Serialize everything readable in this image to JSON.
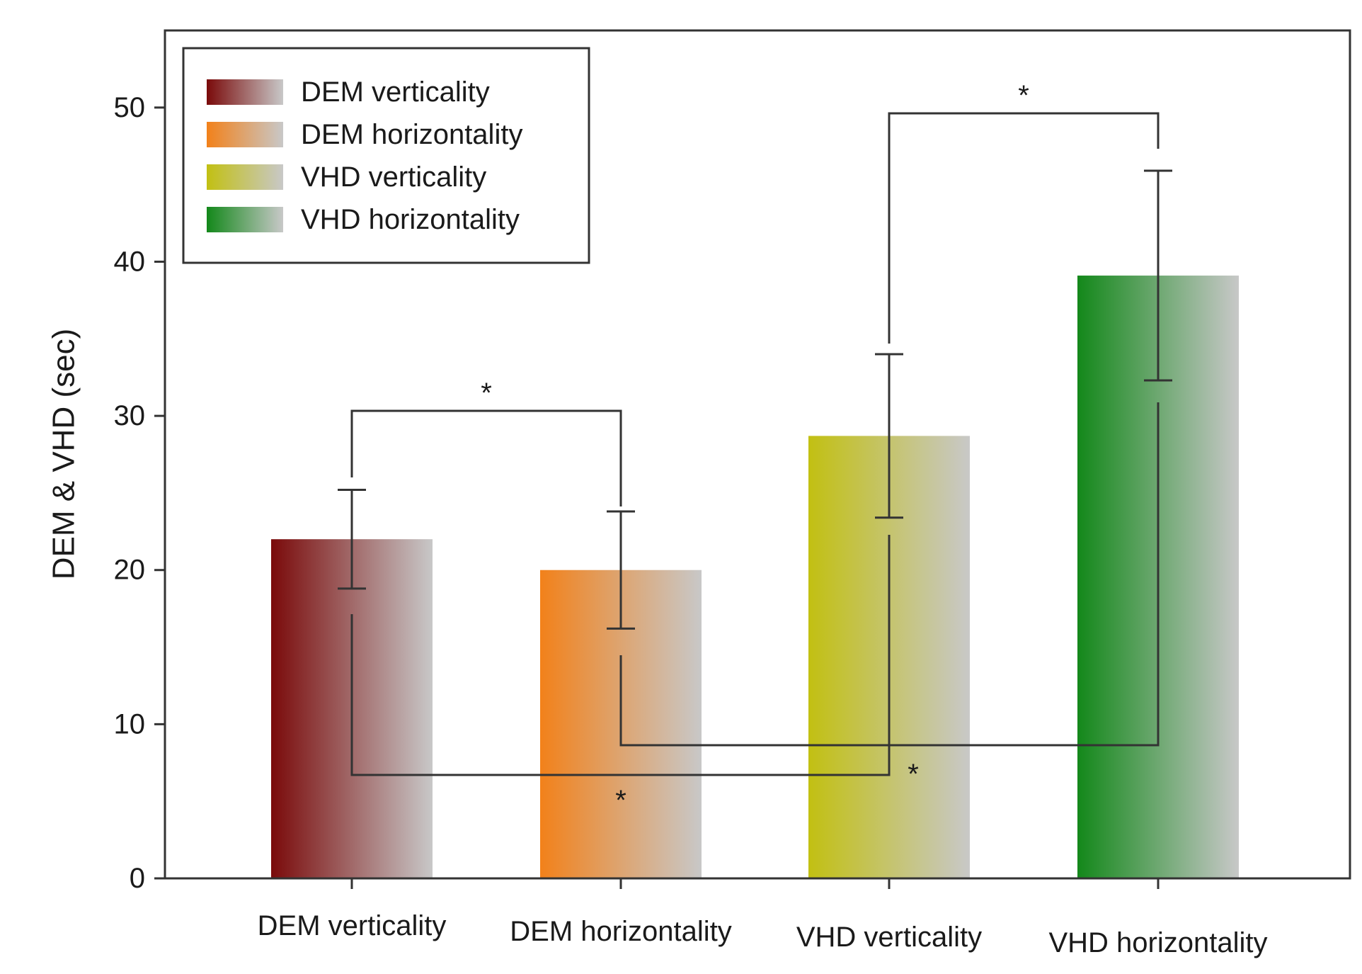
{
  "chart_data": {
    "type": "bar",
    "title": "",
    "xlabel": "",
    "ylabel": "DEM & VHD (sec)",
    "ylim": [
      0,
      55
    ],
    "yticks": [
      0,
      10,
      20,
      30,
      40,
      50
    ],
    "grid": false,
    "legend_position": "top-left",
    "categories": [
      "DEM verticality",
      "DEM horizontality",
      "VHD verticality",
      "VHD horizontality"
    ],
    "values": [
      22.0,
      20.0,
      28.7,
      39.1
    ],
    "errors": [
      3.2,
      3.8,
      5.3,
      6.8
    ],
    "colors": [
      "#7a0a0a",
      "#f2811a",
      "#c2c012",
      "#13881a"
    ],
    "fade_color": "#c8c8c8",
    "significance": [
      {
        "from": 0,
        "to": 1,
        "label": "*"
      },
      {
        "from": 2,
        "to": 3,
        "label": "*"
      },
      {
        "from": 0,
        "to": 2,
        "label": "*"
      },
      {
        "from": 1,
        "to": 3,
        "label": "*"
      }
    ]
  }
}
